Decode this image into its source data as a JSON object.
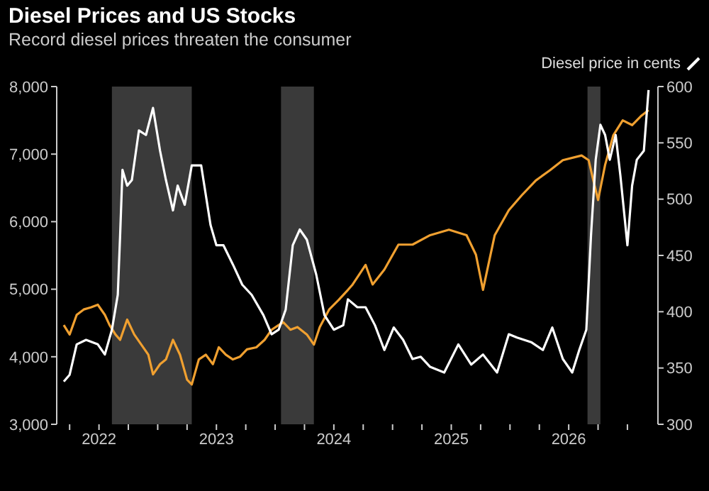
{
  "chart_data": {
    "type": "line",
    "title": "Diesel Prices and US Stocks",
    "subtitle": "Record diesel prices threaten the consumer",
    "xlim": [
      2021.64,
      2026.76
    ],
    "xticks": [
      {
        "value": 2021.75,
        "label": null
      },
      {
        "value": 2022,
        "label": "2022"
      },
      {
        "value": 2022.25,
        "label": null
      },
      {
        "value": 2022.5,
        "label": null
      },
      {
        "value": 2022.75,
        "label": null
      },
      {
        "value": 2023,
        "label": "2023"
      },
      {
        "value": 2023.25,
        "label": null
      },
      {
        "value": 2023.5,
        "label": null
      },
      {
        "value": 2023.75,
        "label": null
      },
      {
        "value": 2024,
        "label": "2024"
      },
      {
        "value": 2024.25,
        "label": null
      },
      {
        "value": 2024.5,
        "label": null
      },
      {
        "value": 2024.75,
        "label": null
      },
      {
        "value": 2025,
        "label": "2025"
      },
      {
        "value": 2025.25,
        "label": null
      },
      {
        "value": 2025.5,
        "label": null
      },
      {
        "value": 2025.75,
        "label": null
      },
      {
        "value": 2026,
        "label": "2026"
      },
      {
        "value": 2026.25,
        "label": null
      },
      {
        "value": 2026.5,
        "label": null
      }
    ],
    "ylim": [
      3000,
      8000
    ],
    "yticks": [
      {
        "value": 3000,
        "label": "3,000"
      },
      {
        "value": 4000,
        "label": "4,000"
      },
      {
        "value": 5000,
        "label": "5,000"
      },
      {
        "value": 6000,
        "label": "6,000"
      },
      {
        "value": 7000,
        "label": "7,000"
      },
      {
        "value": 8000,
        "label": "8,000"
      }
    ],
    "y2lim": [
      300,
      600
    ],
    "y2ticks": [
      300,
      350,
      400,
      450,
      500,
      550,
      600
    ],
    "legend": "top",
    "bands": [
      {
        "axis": "x",
        "from": 2022.11,
        "to": 2022.79,
        "color": "#3a3a3a"
      },
      {
        "axis": "x",
        "from": 2023.55,
        "to": 2023.83,
        "color": "#3a3a3a"
      },
      {
        "axis": "x",
        "from": 2026.16,
        "to": 2026.27,
        "color": "#3a3a3a"
      }
    ],
    "series": [
      {
        "color": "#f0a030",
        "axis": "y",
        "x": [
          2021.7,
          2021.75,
          2021.81,
          2021.87,
          2021.93,
          2021.99,
          2022.05,
          2022.09,
          2022.14,
          2022.18,
          2022.24,
          2022.3,
          2022.36,
          2022.42,
          2022.46,
          2022.52,
          2022.57,
          2022.63,
          2022.69,
          2022.75,
          2022.79,
          2022.85,
          2022.91,
          2022.97,
          2023.02,
          2023.08,
          2023.14,
          2023.2,
          2023.26,
          2023.34,
          2023.41,
          2023.47,
          2023.53,
          2023.57,
          2023.63,
          2023.69,
          2023.77,
          2023.83,
          2023.88,
          2023.96,
          2024.04,
          2024.12,
          2024.16,
          2024.27,
          2024.33,
          2024.43,
          2024.55,
          2024.67,
          2024.82,
          2024.98,
          2025.13,
          2025.21,
          2025.27,
          2025.37,
          2025.49,
          2025.6,
          2025.72,
          2025.84,
          2025.95,
          2026.11,
          2026.17,
          2026.21,
          2026.25,
          2026.31,
          2026.38,
          2026.46,
          2026.54,
          2026.62,
          2026.68
        ],
        "values": [
          4470,
          4330,
          4620,
          4700,
          4730,
          4770,
          4620,
          4470,
          4330,
          4250,
          4550,
          4330,
          4180,
          4030,
          3740,
          3890,
          3960,
          4250,
          4030,
          3660,
          3590,
          3960,
          4030,
          3890,
          4140,
          4030,
          3960,
          4000,
          4110,
          4140,
          4250,
          4400,
          4470,
          4510,
          4400,
          4440,
          4330,
          4180,
          4440,
          4700,
          4840,
          4990,
          5070,
          5360,
          5070,
          5290,
          5660,
          5660,
          5800,
          5880,
          5800,
          5510,
          4990,
          5800,
          6170,
          6390,
          6610,
          6760,
          6910,
          6980,
          6910,
          6610,
          6320,
          6840,
          7280,
          7500,
          7430,
          7570,
          7650
        ]
      },
      {
        "name": "Diesel price in cents",
        "color": "#ffffff",
        "axis": "y2",
        "x": [
          2021.7,
          2021.75,
          2021.81,
          2021.89,
          2021.99,
          2022.05,
          2022.11,
          2022.16,
          2022.18,
          2022.2,
          2022.24,
          2022.28,
          2022.34,
          2022.4,
          2022.46,
          2022.52,
          2022.57,
          2022.63,
          2022.67,
          2022.73,
          2022.79,
          2022.87,
          2022.95,
          2023.0,
          2023.06,
          2023.14,
          2023.22,
          2023.3,
          2023.4,
          2023.47,
          2023.53,
          2023.59,
          2023.65,
          2023.71,
          2023.77,
          2023.85,
          2023.92,
          2024.0,
          2024.08,
          2024.12,
          2024.2,
          2024.27,
          2024.35,
          2024.43,
          2024.51,
          2024.59,
          2024.67,
          2024.74,
          2024.82,
          2024.94,
          2025.06,
          2025.17,
          2025.27,
          2025.39,
          2025.49,
          2025.56,
          2025.68,
          2025.78,
          2025.86,
          2025.95,
          2026.03,
          2026.09,
          2026.15,
          2026.19,
          2026.23,
          2026.27,
          2026.31,
          2026.35,
          2026.4,
          2026.44,
          2026.5,
          2026.54,
          2026.58,
          2026.64,
          2026.68
        ],
        "values": [
          338,
          344,
          371,
          375,
          371,
          362,
          384,
          415,
          468,
          526,
          512,
          517,
          561,
          557,
          581,
          543,
          517,
          490,
          512,
          495,
          530,
          530,
          477,
          459,
          459,
          442,
          424,
          415,
          397,
          380,
          384,
          402,
          459,
          473,
          464,
          433,
          397,
          384,
          388,
          411,
          404,
          404,
          388,
          366,
          386,
          375,
          358,
          360,
          351,
          346,
          371,
          353,
          362,
          346,
          380,
          377,
          373,
          366,
          386,
          358,
          346,
          366,
          384,
          468,
          535,
          566,
          557,
          535,
          557,
          521,
          459,
          512,
          535,
          543,
          597
        ]
      }
    ]
  }
}
